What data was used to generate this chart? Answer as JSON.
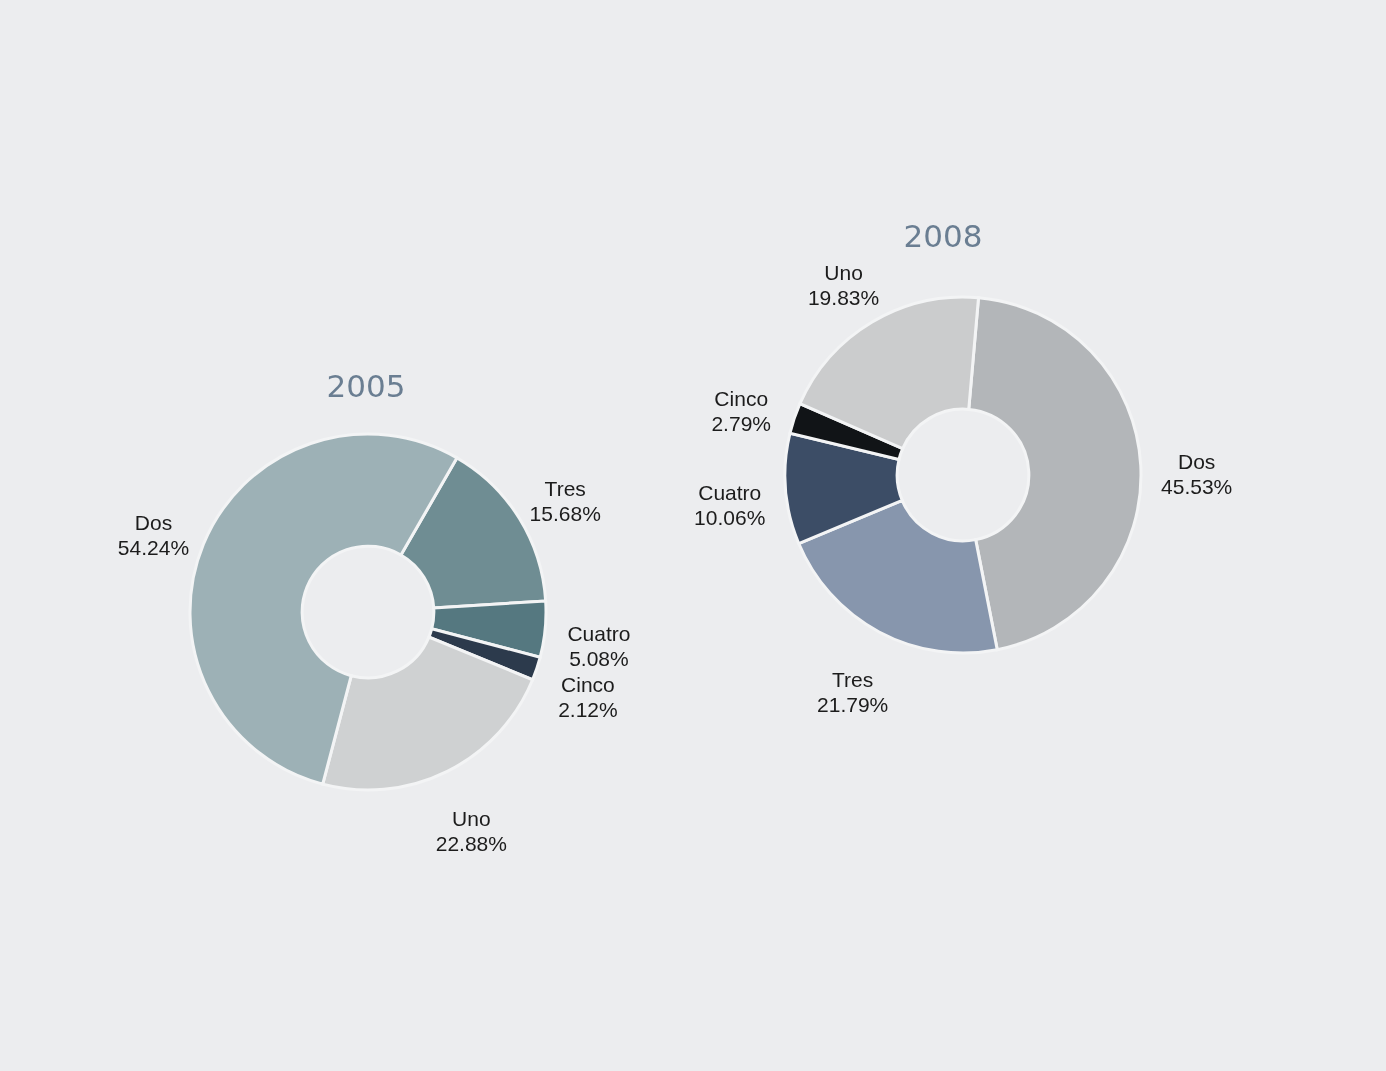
{
  "chart_data": [
    {
      "type": "donut",
      "title": "2005",
      "categories": [
        "Tres",
        "Cuatro",
        "Cinco",
        "Uno",
        "Dos"
      ],
      "values": [
        15.68,
        5.08,
        2.12,
        22.88,
        54.24
      ],
      "value_labels": [
        "15.68%",
        "5.08%",
        "2.12%",
        "22.88%",
        "54.24%"
      ],
      "colors": [
        "#6f8d93",
        "#557880",
        "#2c3a4c",
        "#cfd1d2",
        "#9db1b6"
      ]
    },
    {
      "type": "donut",
      "title": "2008",
      "categories": [
        "Dos",
        "Tres",
        "Cuatro",
        "Cinco",
        "Uno"
      ],
      "values": [
        45.53,
        21.79,
        10.06,
        2.79,
        19.83
      ],
      "value_labels": [
        "45.53%",
        "21.79%",
        "10.06%",
        "2.79%",
        "19.83%"
      ],
      "colors": [
        "#b3b6b9",
        "#8796ad",
        "#3c4d66",
        "#111417",
        "#cbcccd"
      ]
    }
  ]
}
